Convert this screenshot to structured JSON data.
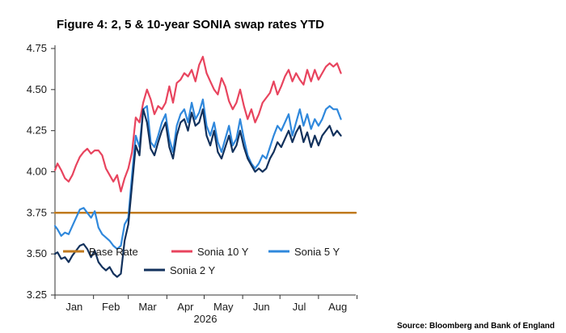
{
  "figure": {
    "title": "Figure 4:  2, 5 & 10-year SONIA swap rates YTD",
    "source": "Source: Bloomberg and Bank of England"
  },
  "chart_data": {
    "type": "line",
    "title": "Figure 4:  2, 5 & 10-year SONIA swap rates YTD",
    "xlabel": "2026",
    "ylabel": "",
    "x_tick_labels": [
      "Jan",
      "Feb",
      "Mar",
      "Apr",
      "May",
      "Jun",
      "Jul",
      "Aug"
    ],
    "y_ticks": [
      3.25,
      3.5,
      3.75,
      4.0,
      4.25,
      4.5,
      4.75
    ],
    "y_tick_labels": [
      "3.25",
      "3.50",
      "3.75",
      "4.00",
      "4.25",
      "4.50",
      "4.75"
    ],
    "ylim": [
      3.25,
      4.75
    ],
    "xlim": [
      "2026-01-01",
      "2026-08-31"
    ],
    "grid": false,
    "legend": "bottom-center",
    "series": [
      {
        "name": "Base Rate",
        "color": "#c07a1e",
        "points": [
          [
            "2026-01-01",
            3.75
          ],
          [
            "2026-08-31",
            3.75
          ]
        ]
      },
      {
        "name": "Sonia 10 Y",
        "color": "#e8445e",
        "points": [
          [
            "2026-01-01",
            4.01
          ],
          [
            "2026-01-03",
            4.05
          ],
          [
            "2026-01-06",
            4.01
          ],
          [
            "2026-01-09",
            3.96
          ],
          [
            "2026-01-12",
            3.94
          ],
          [
            "2026-01-15",
            3.98
          ],
          [
            "2026-01-18",
            4.04
          ],
          [
            "2026-01-21",
            4.09
          ],
          [
            "2026-01-24",
            4.12
          ],
          [
            "2026-01-27",
            4.14
          ],
          [
            "2026-01-30",
            4.11
          ],
          [
            "2026-02-02",
            4.13
          ],
          [
            "2026-02-05",
            4.13
          ],
          [
            "2026-02-08",
            4.1
          ],
          [
            "2026-02-11",
            4.02
          ],
          [
            "2026-02-14",
            3.98
          ],
          [
            "2026-02-17",
            3.94
          ],
          [
            "2026-02-20",
            3.98
          ],
          [
            "2026-02-23",
            3.88
          ],
          [
            "2026-02-26",
            3.96
          ],
          [
            "2026-03-01",
            4.02
          ],
          [
            "2026-03-04",
            4.12
          ],
          [
            "2026-03-07",
            4.33
          ],
          [
            "2026-03-10",
            4.3
          ],
          [
            "2026-03-13",
            4.42
          ],
          [
            "2026-03-16",
            4.5
          ],
          [
            "2026-03-19",
            4.44
          ],
          [
            "2026-03-22",
            4.35
          ],
          [
            "2026-03-25",
            4.4
          ],
          [
            "2026-03-28",
            4.38
          ],
          [
            "2026-03-31",
            4.42
          ],
          [
            "2026-04-03",
            4.52
          ],
          [
            "2026-04-06",
            4.42
          ],
          [
            "2026-04-09",
            4.54
          ],
          [
            "2026-04-12",
            4.56
          ],
          [
            "2026-04-15",
            4.6
          ],
          [
            "2026-04-18",
            4.58
          ],
          [
            "2026-04-21",
            4.62
          ],
          [
            "2026-04-24",
            4.55
          ],
          [
            "2026-04-27",
            4.65
          ],
          [
            "2026-04-30",
            4.7
          ],
          [
            "2026-05-03",
            4.6
          ],
          [
            "2026-05-06",
            4.55
          ],
          [
            "2026-05-09",
            4.5
          ],
          [
            "2026-05-12",
            4.47
          ],
          [
            "2026-05-15",
            4.57
          ],
          [
            "2026-05-18",
            4.52
          ],
          [
            "2026-05-21",
            4.43
          ],
          [
            "2026-05-24",
            4.38
          ],
          [
            "2026-05-27",
            4.42
          ],
          [
            "2026-05-30",
            4.5
          ],
          [
            "2026-06-02",
            4.4
          ],
          [
            "2026-06-05",
            4.32
          ],
          [
            "2026-06-08",
            4.38
          ],
          [
            "2026-06-11",
            4.3
          ],
          [
            "2026-06-14",
            4.35
          ],
          [
            "2026-06-17",
            4.42
          ],
          [
            "2026-06-20",
            4.45
          ],
          [
            "2026-06-23",
            4.48
          ],
          [
            "2026-06-26",
            4.55
          ],
          [
            "2026-06-29",
            4.47
          ],
          [
            "2026-07-02",
            4.52
          ],
          [
            "2026-07-05",
            4.58
          ],
          [
            "2026-07-08",
            4.62
          ],
          [
            "2026-07-11",
            4.55
          ],
          [
            "2026-07-14",
            4.6
          ],
          [
            "2026-07-17",
            4.56
          ],
          [
            "2026-07-20",
            4.53
          ],
          [
            "2026-07-23",
            4.62
          ],
          [
            "2026-07-26",
            4.55
          ],
          [
            "2026-07-29",
            4.62
          ],
          [
            "2026-08-01",
            4.56
          ],
          [
            "2026-08-04",
            4.6
          ],
          [
            "2026-08-07",
            4.64
          ],
          [
            "2026-08-10",
            4.66
          ],
          [
            "2026-08-13",
            4.64
          ],
          [
            "2026-08-16",
            4.66
          ],
          [
            "2026-08-19",
            4.6
          ]
        ]
      },
      {
        "name": "Sonia 5 Y",
        "color": "#2f88dc",
        "points": [
          [
            "2026-01-01",
            3.67
          ],
          [
            "2026-01-03",
            3.65
          ],
          [
            "2026-01-06",
            3.61
          ],
          [
            "2026-01-09",
            3.63
          ],
          [
            "2026-01-12",
            3.62
          ],
          [
            "2026-01-15",
            3.67
          ],
          [
            "2026-01-18",
            3.72
          ],
          [
            "2026-01-21",
            3.77
          ],
          [
            "2026-01-24",
            3.78
          ],
          [
            "2026-01-27",
            3.75
          ],
          [
            "2026-01-30",
            3.72
          ],
          [
            "2026-02-02",
            3.76
          ],
          [
            "2026-02-05",
            3.66
          ],
          [
            "2026-02-08",
            3.62
          ],
          [
            "2026-02-11",
            3.6
          ],
          [
            "2026-02-14",
            3.58
          ],
          [
            "2026-02-17",
            3.55
          ],
          [
            "2026-02-20",
            3.53
          ],
          [
            "2026-02-23",
            3.55
          ],
          [
            "2026-02-26",
            3.68
          ],
          [
            "2026-03-01",
            3.72
          ],
          [
            "2026-03-04",
            3.98
          ],
          [
            "2026-03-07",
            4.22
          ],
          [
            "2026-03-10",
            4.15
          ],
          [
            "2026-03-13",
            4.38
          ],
          [
            "2026-03-16",
            4.4
          ],
          [
            "2026-03-19",
            4.18
          ],
          [
            "2026-03-22",
            4.15
          ],
          [
            "2026-03-25",
            4.22
          ],
          [
            "2026-03-28",
            4.3
          ],
          [
            "2026-03-31",
            4.35
          ],
          [
            "2026-04-03",
            4.2
          ],
          [
            "2026-04-06",
            4.12
          ],
          [
            "2026-04-09",
            4.28
          ],
          [
            "2026-04-12",
            4.35
          ],
          [
            "2026-04-15",
            4.38
          ],
          [
            "2026-04-18",
            4.3
          ],
          [
            "2026-04-21",
            4.42
          ],
          [
            "2026-04-24",
            4.32
          ],
          [
            "2026-04-27",
            4.36
          ],
          [
            "2026-04-30",
            4.44
          ],
          [
            "2026-05-03",
            4.28
          ],
          [
            "2026-05-06",
            4.22
          ],
          [
            "2026-05-09",
            4.3
          ],
          [
            "2026-05-12",
            4.18
          ],
          [
            "2026-05-15",
            4.12
          ],
          [
            "2026-05-18",
            4.2
          ],
          [
            "2026-05-21",
            4.28
          ],
          [
            "2026-05-24",
            4.16
          ],
          [
            "2026-05-27",
            4.2
          ],
          [
            "2026-05-30",
            4.32
          ],
          [
            "2026-06-02",
            4.2
          ],
          [
            "2026-06-05",
            4.1
          ],
          [
            "2026-06-08",
            4.05
          ],
          [
            "2026-06-11",
            4.02
          ],
          [
            "2026-06-14",
            4.05
          ],
          [
            "2026-06-17",
            4.1
          ],
          [
            "2026-06-20",
            4.08
          ],
          [
            "2026-06-23",
            4.15
          ],
          [
            "2026-06-26",
            4.22
          ],
          [
            "2026-06-29",
            4.28
          ],
          [
            "2026-07-02",
            4.25
          ],
          [
            "2026-07-05",
            4.3
          ],
          [
            "2026-07-08",
            4.35
          ],
          [
            "2026-07-11",
            4.22
          ],
          [
            "2026-07-14",
            4.3
          ],
          [
            "2026-07-17",
            4.38
          ],
          [
            "2026-07-20",
            4.28
          ],
          [
            "2026-07-23",
            4.35
          ],
          [
            "2026-07-26",
            4.26
          ],
          [
            "2026-07-29",
            4.32
          ],
          [
            "2026-08-01",
            4.28
          ],
          [
            "2026-08-04",
            4.32
          ],
          [
            "2026-08-07",
            4.38
          ],
          [
            "2026-08-10",
            4.4
          ],
          [
            "2026-08-13",
            4.38
          ],
          [
            "2026-08-16",
            4.38
          ],
          [
            "2026-08-19",
            4.32
          ]
        ]
      },
      {
        "name": "Sonia 2 Y",
        "color": "#12315c",
        "points": [
          [
            "2026-01-01",
            3.5
          ],
          [
            "2026-01-03",
            3.51
          ],
          [
            "2026-01-06",
            3.47
          ],
          [
            "2026-01-09",
            3.48
          ],
          [
            "2026-01-12",
            3.45
          ],
          [
            "2026-01-15",
            3.49
          ],
          [
            "2026-01-18",
            3.52
          ],
          [
            "2026-01-21",
            3.55
          ],
          [
            "2026-01-24",
            3.56
          ],
          [
            "2026-01-27",
            3.53
          ],
          [
            "2026-01-30",
            3.48
          ],
          [
            "2026-02-02",
            3.52
          ],
          [
            "2026-02-05",
            3.45
          ],
          [
            "2026-02-08",
            3.42
          ],
          [
            "2026-02-11",
            3.4
          ],
          [
            "2026-02-14",
            3.42
          ],
          [
            "2026-02-17",
            3.38
          ],
          [
            "2026-02-20",
            3.36
          ],
          [
            "2026-02-23",
            3.38
          ],
          [
            "2026-02-26",
            3.58
          ],
          [
            "2026-03-01",
            3.68
          ],
          [
            "2026-03-04",
            3.92
          ],
          [
            "2026-03-07",
            4.16
          ],
          [
            "2026-03-10",
            4.1
          ],
          [
            "2026-03-13",
            4.38
          ],
          [
            "2026-03-16",
            4.3
          ],
          [
            "2026-03-19",
            4.14
          ],
          [
            "2026-03-22",
            4.1
          ],
          [
            "2026-03-25",
            4.18
          ],
          [
            "2026-03-28",
            4.25
          ],
          [
            "2026-03-31",
            4.3
          ],
          [
            "2026-04-03",
            4.15
          ],
          [
            "2026-04-06",
            4.08
          ],
          [
            "2026-04-09",
            4.22
          ],
          [
            "2026-04-12",
            4.3
          ],
          [
            "2026-04-15",
            4.32
          ],
          [
            "2026-04-18",
            4.25
          ],
          [
            "2026-04-21",
            4.36
          ],
          [
            "2026-04-24",
            4.28
          ],
          [
            "2026-04-27",
            4.3
          ],
          [
            "2026-04-30",
            4.38
          ],
          [
            "2026-05-03",
            4.22
          ],
          [
            "2026-05-06",
            4.16
          ],
          [
            "2026-05-09",
            4.25
          ],
          [
            "2026-05-12",
            4.12
          ],
          [
            "2026-05-15",
            4.08
          ],
          [
            "2026-05-18",
            4.15
          ],
          [
            "2026-05-21",
            4.22
          ],
          [
            "2026-05-24",
            4.12
          ],
          [
            "2026-05-27",
            4.16
          ],
          [
            "2026-05-30",
            4.25
          ],
          [
            "2026-06-02",
            4.15
          ],
          [
            "2026-06-05",
            4.08
          ],
          [
            "2026-06-08",
            4.04
          ],
          [
            "2026-06-11",
            4.0
          ],
          [
            "2026-06-14",
            4.02
          ],
          [
            "2026-06-17",
            4.0
          ],
          [
            "2026-06-20",
            4.02
          ],
          [
            "2026-06-23",
            4.08
          ],
          [
            "2026-06-26",
            4.12
          ],
          [
            "2026-06-29",
            4.18
          ],
          [
            "2026-07-02",
            4.15
          ],
          [
            "2026-07-05",
            4.2
          ],
          [
            "2026-07-08",
            4.25
          ],
          [
            "2026-07-11",
            4.18
          ],
          [
            "2026-07-14",
            4.24
          ],
          [
            "2026-07-17",
            4.28
          ],
          [
            "2026-07-20",
            4.18
          ],
          [
            "2026-07-23",
            4.24
          ],
          [
            "2026-07-26",
            4.15
          ],
          [
            "2026-07-29",
            4.22
          ],
          [
            "2026-08-01",
            4.16
          ],
          [
            "2026-08-04",
            4.22
          ],
          [
            "2026-08-07",
            4.25
          ],
          [
            "2026-08-10",
            4.28
          ],
          [
            "2026-08-13",
            4.22
          ],
          [
            "2026-08-16",
            4.25
          ],
          [
            "2026-08-19",
            4.22
          ]
        ]
      }
    ]
  }
}
